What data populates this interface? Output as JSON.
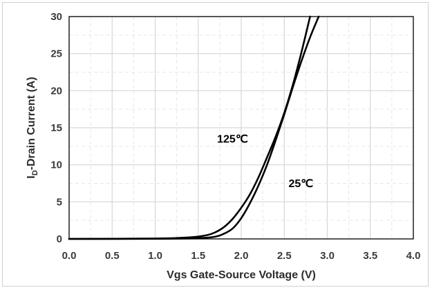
{
  "chart_data": {
    "type": "line",
    "title": "",
    "xlabel": "Vgs Gate-Source Voltage (V)",
    "ylabel_main": "I",
    "ylabel_sub": "D",
    "ylabel_rest": "-Drain Current (A)",
    "xlim": [
      0,
      4.0
    ],
    "ylim": [
      0,
      30
    ],
    "x_ticks": [
      "0.0",
      "0.5",
      "1.0",
      "1.5",
      "2.0",
      "2.5",
      "3.0",
      "3.5",
      "4.0"
    ],
    "y_ticks": [
      "0",
      "5",
      "10",
      "15",
      "20",
      "25",
      "30"
    ],
    "grid": true,
    "series": [
      {
        "name": "125℃",
        "x": [
          0.0,
          1.0,
          1.4,
          1.6,
          1.7,
          1.8,
          1.9,
          2.0,
          2.1,
          2.2,
          2.3,
          2.4,
          2.5,
          2.6,
          2.7,
          2.8
        ],
        "y": [
          0.0,
          0.05,
          0.2,
          0.5,
          0.9,
          1.6,
          2.7,
          4.2,
          6.0,
          8.3,
          11.0,
          13.8,
          17.0,
          20.8,
          25.2,
          30.0
        ]
      },
      {
        "name": "25℃",
        "x": [
          0.0,
          1.0,
          1.5,
          1.7,
          1.8,
          1.9,
          2.0,
          2.1,
          2.2,
          2.3,
          2.4,
          2.5,
          2.6,
          2.7,
          2.8,
          2.9
        ],
        "y": [
          0.0,
          0.02,
          0.1,
          0.3,
          0.7,
          1.4,
          2.8,
          4.8,
          7.2,
          10.0,
          13.3,
          16.8,
          20.5,
          24.0,
          27.2,
          30.0
        ]
      }
    ],
    "annotations": [
      {
        "text": "125℃",
        "x": 1.72,
        "y": 13.0
      },
      {
        "text": "25℃",
        "x": 2.55,
        "y": 7.0
      }
    ],
    "colors": {
      "curve": "#000000",
      "grid": "#d6d6d6",
      "axis": "#222222"
    }
  }
}
